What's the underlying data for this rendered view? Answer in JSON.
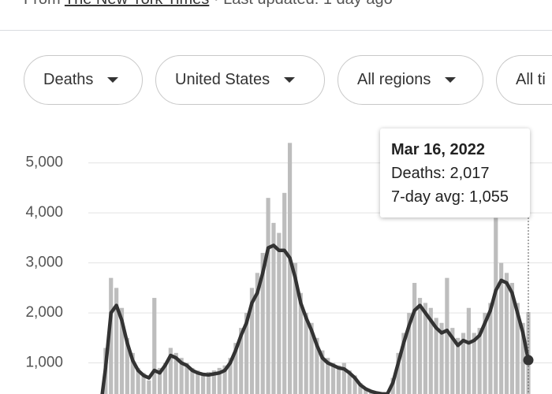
{
  "header": {
    "source_prefix": "From",
    "source": "The New York Times",
    "updated": "· Last updated: 1 day ago"
  },
  "filters": [
    "Deaths",
    "United States",
    "All regions",
    "All ti"
  ],
  "tooltip": {
    "date": "Mar 16, 2022",
    "lines": [
      "Deaths: 2,017",
      "7-day avg: 1,055"
    ]
  },
  "chart_data": {
    "type": "bar-line",
    "ylim": [
      0,
      5500
    ],
    "yticks": [
      {
        "value": 1000,
        "label": "1,000"
      },
      {
        "value": 2000,
        "label": "2,000"
      },
      {
        "value": 3000,
        "label": "3,000"
      },
      {
        "value": 4000,
        "label": "4,000"
      },
      {
        "value": 5000,
        "label": "5,000"
      }
    ],
    "grid": true,
    "series": [
      {
        "name": "Deaths",
        "type": "bar",
        "color": "#bdbdbd",
        "values": [
          80,
          1300,
          2700,
          2500,
          2100,
          1500,
          1200,
          900,
          800,
          650,
          2300,
          900,
          1000,
          1300,
          1200,
          1100,
          1000,
          900,
          850,
          800,
          820,
          850,
          900,
          950,
          1100,
          1400,
          1700,
          2000,
          2500,
          2800,
          3200,
          4300,
          3800,
          3600,
          4400,
          5400,
          3000,
          2400,
          2000,
          1800,
          1500,
          1250,
          1100,
          1000,
          950,
          1000,
          850,
          750,
          600,
          500,
          450,
          420,
          400,
          400,
          700,
          1200,
          1600,
          2000,
          2600,
          2300,
          2200,
          2100,
          1900,
          1800,
          2700,
          1700,
          1500,
          1600,
          2100,
          1600,
          1700,
          2000,
          2200,
          3900,
          3000,
          2800,
          2600,
          2200,
          1800,
          2017
        ]
      },
      {
        "name": "7-day avg",
        "type": "line",
        "color": "#333333",
        "values": [
          50,
          900,
          2000,
          2150,
          1850,
          1400,
          1050,
          850,
          750,
          700,
          850,
          800,
          950,
          1150,
          1100,
          1000,
          950,
          850,
          800,
          770,
          760,
          780,
          800,
          850,
          1000,
          1250,
          1550,
          1800,
          2200,
          2400,
          2800,
          3300,
          3350,
          3250,
          3250,
          3100,
          2700,
          2200,
          1900,
          1650,
          1350,
          1100,
          1000,
          950,
          900,
          880,
          800,
          700,
          560,
          480,
          430,
          400,
          380,
          380,
          600,
          1000,
          1400,
          1750,
          2050,
          2150,
          2000,
          1850,
          1700,
          1600,
          1650,
          1500,
          1350,
          1450,
          1400,
          1450,
          1550,
          1800,
          2050,
          2450,
          2650,
          2600,
          2400,
          2000,
          1600,
          1055
        ]
      }
    ]
  }
}
